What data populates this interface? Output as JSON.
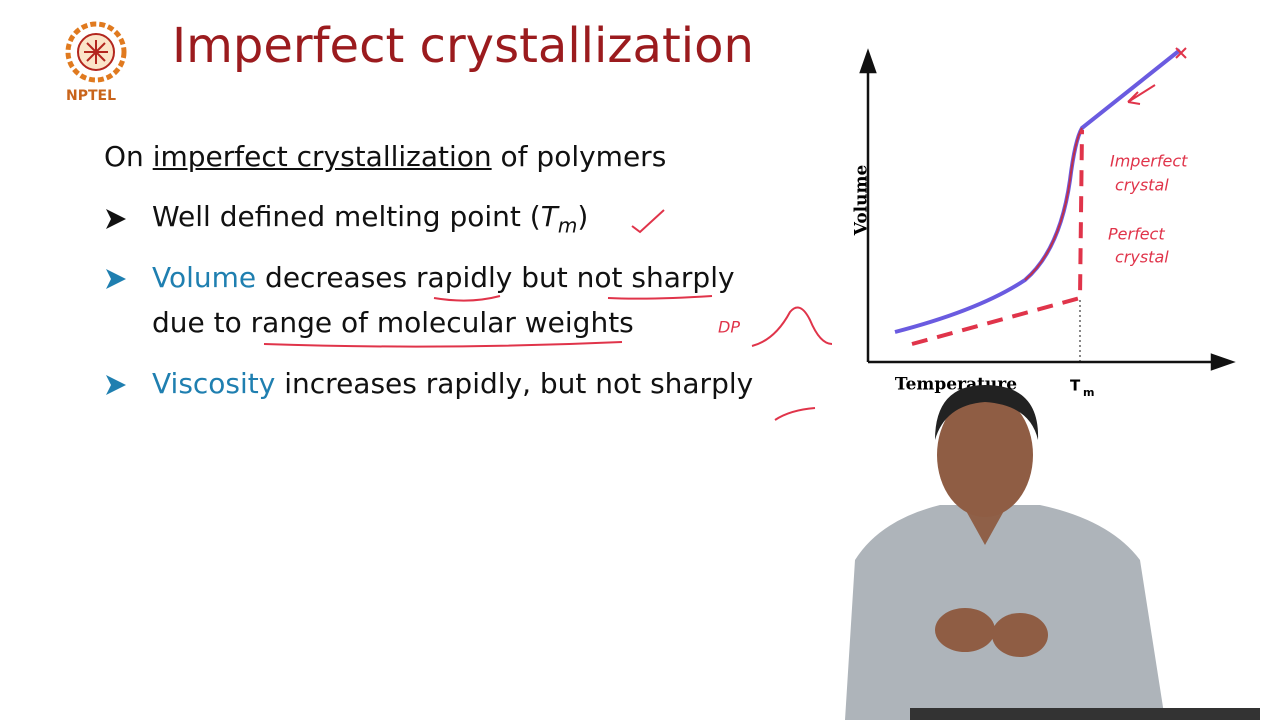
{
  "logo": {
    "label": "NPTEL"
  },
  "header": {
    "title": "Imperfect crystallization"
  },
  "intro": {
    "prefix": "On ",
    "underlined": "imperfect crystallization",
    "suffix": " of polymers"
  },
  "bullets": [
    {
      "text": "Well defined melting point (",
      "symbol": "T",
      "subscript": "m",
      "close": ")"
    },
    {
      "highlight": "Volume",
      "text": " decreases rapidly but not sharply",
      "line2": "due to range of molecular weights"
    },
    {
      "highlight": "Viscosity",
      "text": " increases rapidly, but not sharply"
    }
  ],
  "diagram": {
    "y_label": "Volume",
    "x_label": "Temperature",
    "tm_symbol": "T",
    "tm_subscript": "m",
    "annotations": {
      "imperfect_1": "Imperfect",
      "imperfect_2": "crystal",
      "perfect_1": "Perfect",
      "perfect_2": "crystal",
      "dp": "DP"
    }
  }
}
